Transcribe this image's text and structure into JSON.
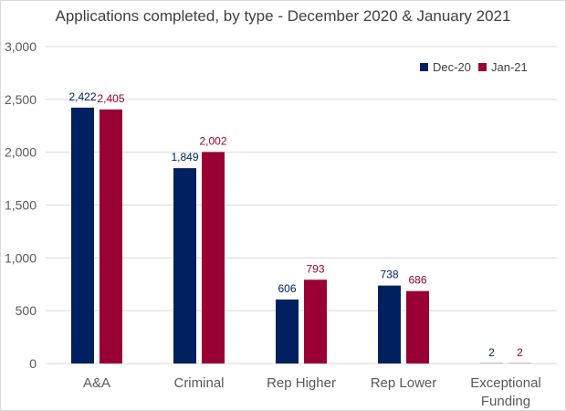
{
  "chart_data": {
    "type": "bar",
    "title": "Applications completed, by type - December 2020 & January 2021",
    "categories": [
      "A&A",
      "Criminal",
      "Rep Higher",
      "Rep Lower",
      "Exceptional Funding"
    ],
    "category_lines": [
      [
        "A&A"
      ],
      [
        "Criminal"
      ],
      [
        "Rep Higher"
      ],
      [
        "Rep Lower"
      ],
      [
        "Exceptional",
        "Funding"
      ]
    ],
    "series": [
      {
        "name": "Dec-20",
        "values": [
          2422,
          1849,
          606,
          738,
          2
        ],
        "labels": [
          "2,422",
          "1,849",
          "606",
          "738",
          "2"
        ]
      },
      {
        "name": "Jan-21",
        "values": [
          2405,
          2002,
          793,
          686,
          2
        ],
        "labels": [
          "2,405",
          "2,002",
          "793",
          "686",
          "2"
        ]
      }
    ],
    "colors": {
      "Dec-20": "#002060",
      "Jan-21": "#990033"
    },
    "ylim": [
      0,
      3000
    ],
    "yticks": [
      0,
      500,
      1000,
      1500,
      2000,
      2500,
      3000
    ],
    "ytick_labels": [
      "0",
      "500",
      "1,000",
      "1,500",
      "2,000",
      "2,500",
      "3,000"
    ],
    "grid": true,
    "legend_position": "top-right",
    "xlabel": "",
    "ylabel": ""
  }
}
